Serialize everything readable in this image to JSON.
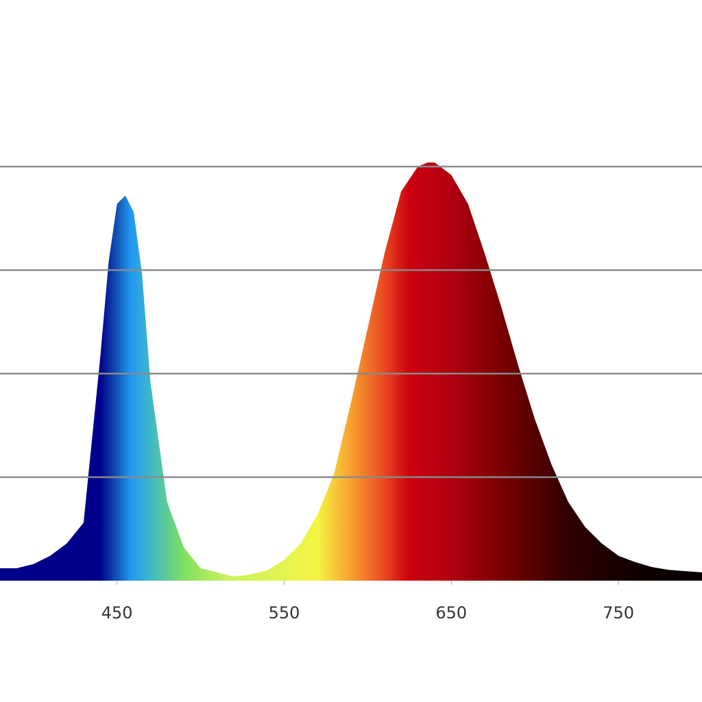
{
  "chart_data": {
    "type": "area",
    "x": [
      380,
      390,
      400,
      410,
      420,
      430,
      440,
      445,
      450,
      455,
      460,
      465,
      470,
      480,
      490,
      500,
      510,
      520,
      530,
      540,
      550,
      560,
      570,
      580,
      590,
      600,
      610,
      620,
      630,
      636,
      640,
      650,
      660,
      670,
      680,
      690,
      700,
      710,
      720,
      730,
      740,
      750,
      760,
      770,
      780,
      790,
      800
    ],
    "values": [
      0.03,
      0.03,
      0.04,
      0.06,
      0.09,
      0.14,
      0.54,
      0.77,
      0.91,
      0.93,
      0.89,
      0.74,
      0.48,
      0.19,
      0.08,
      0.03,
      0.02,
      0.01,
      0.015,
      0.025,
      0.05,
      0.09,
      0.16,
      0.26,
      0.43,
      0.61,
      0.79,
      0.94,
      1.0,
      1.01,
      1.01,
      0.98,
      0.91,
      0.79,
      0.66,
      0.52,
      0.39,
      0.28,
      0.19,
      0.13,
      0.09,
      0.06,
      0.045,
      0.033,
      0.026,
      0.023,
      0.02
    ],
    "xlim": [
      380,
      800
    ],
    "xticks": [
      450,
      550,
      650,
      750
    ],
    "ylim": [
      0,
      1.4
    ],
    "yticks": [
      0.25,
      0.5,
      0.75,
      1
    ],
    "grid": true,
    "gradient": [
      {
        "at": 380,
        "color": "#00008b"
      },
      {
        "at": 440,
        "color": "#00008b"
      },
      {
        "at": 452,
        "color": "#1565c0"
      },
      {
        "at": 458,
        "color": "#2196f3"
      },
      {
        "at": 470,
        "color": "#3fb8c8"
      },
      {
        "at": 490,
        "color": "#80e060"
      },
      {
        "at": 515,
        "color": "#c8f060"
      },
      {
        "at": 570,
        "color": "#f5f542"
      },
      {
        "at": 590,
        "color": "#f8a030"
      },
      {
        "at": 610,
        "color": "#e84820"
      },
      {
        "at": 625,
        "color": "#cc0010"
      },
      {
        "at": 650,
        "color": "#b00010"
      },
      {
        "at": 680,
        "color": "#7a0000"
      },
      {
        "at": 720,
        "color": "#300000"
      },
      {
        "at": 760,
        "color": "#100000"
      },
      {
        "at": 800,
        "color": "#050000"
      }
    ]
  }
}
